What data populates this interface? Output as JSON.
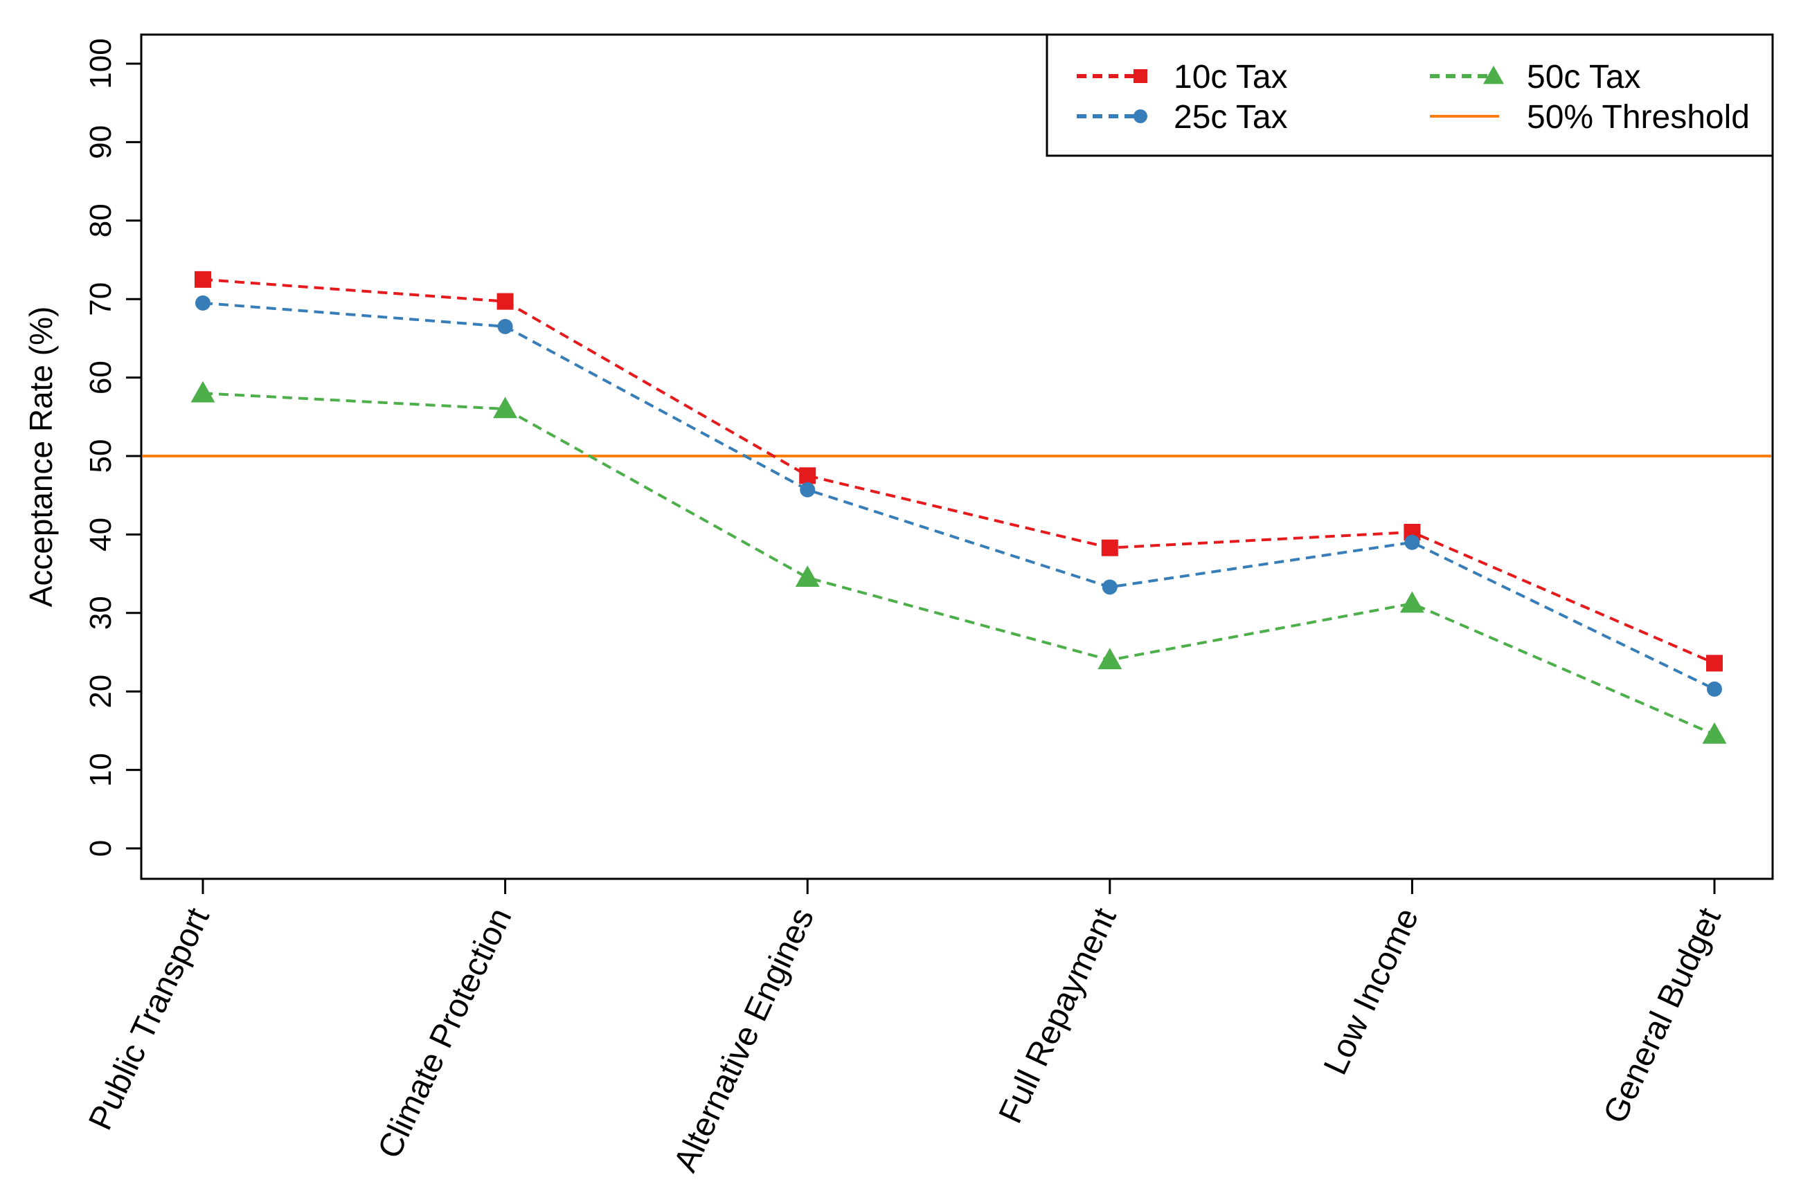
{
  "chart_data": {
    "type": "line",
    "title": "",
    "xlabel": "",
    "ylabel": "Acceptance Rate (%)",
    "ylim": [
      0,
      100
    ],
    "yticks": [
      0,
      10,
      20,
      30,
      40,
      50,
      60,
      70,
      80,
      90,
      100
    ],
    "categories": [
      "Public Transport",
      "Climate Protection",
      "Alternative Engines",
      "Full Repayment",
      "Low Income",
      "General Budget"
    ],
    "series": [
      {
        "name": "10c Tax",
        "color": "#e41a1c",
        "marker": "square",
        "values": [
          72.5,
          69.7,
          47.5,
          38.3,
          40.3,
          23.6
        ]
      },
      {
        "name": "25c Tax",
        "color": "#377eb8",
        "marker": "circle",
        "values": [
          69.5,
          66.5,
          45.7,
          33.3,
          39.0,
          20.3
        ]
      },
      {
        "name": "50c Tax",
        "color": "#4daf4a",
        "marker": "triangle",
        "values": [
          58.0,
          56.0,
          34.5,
          24.0,
          31.2,
          14.5
        ]
      }
    ],
    "reference_line": {
      "name": "50% Threshold",
      "value": 50,
      "color": "#ff7f0e"
    },
    "legend_position": "top-right",
    "grid": false
  }
}
